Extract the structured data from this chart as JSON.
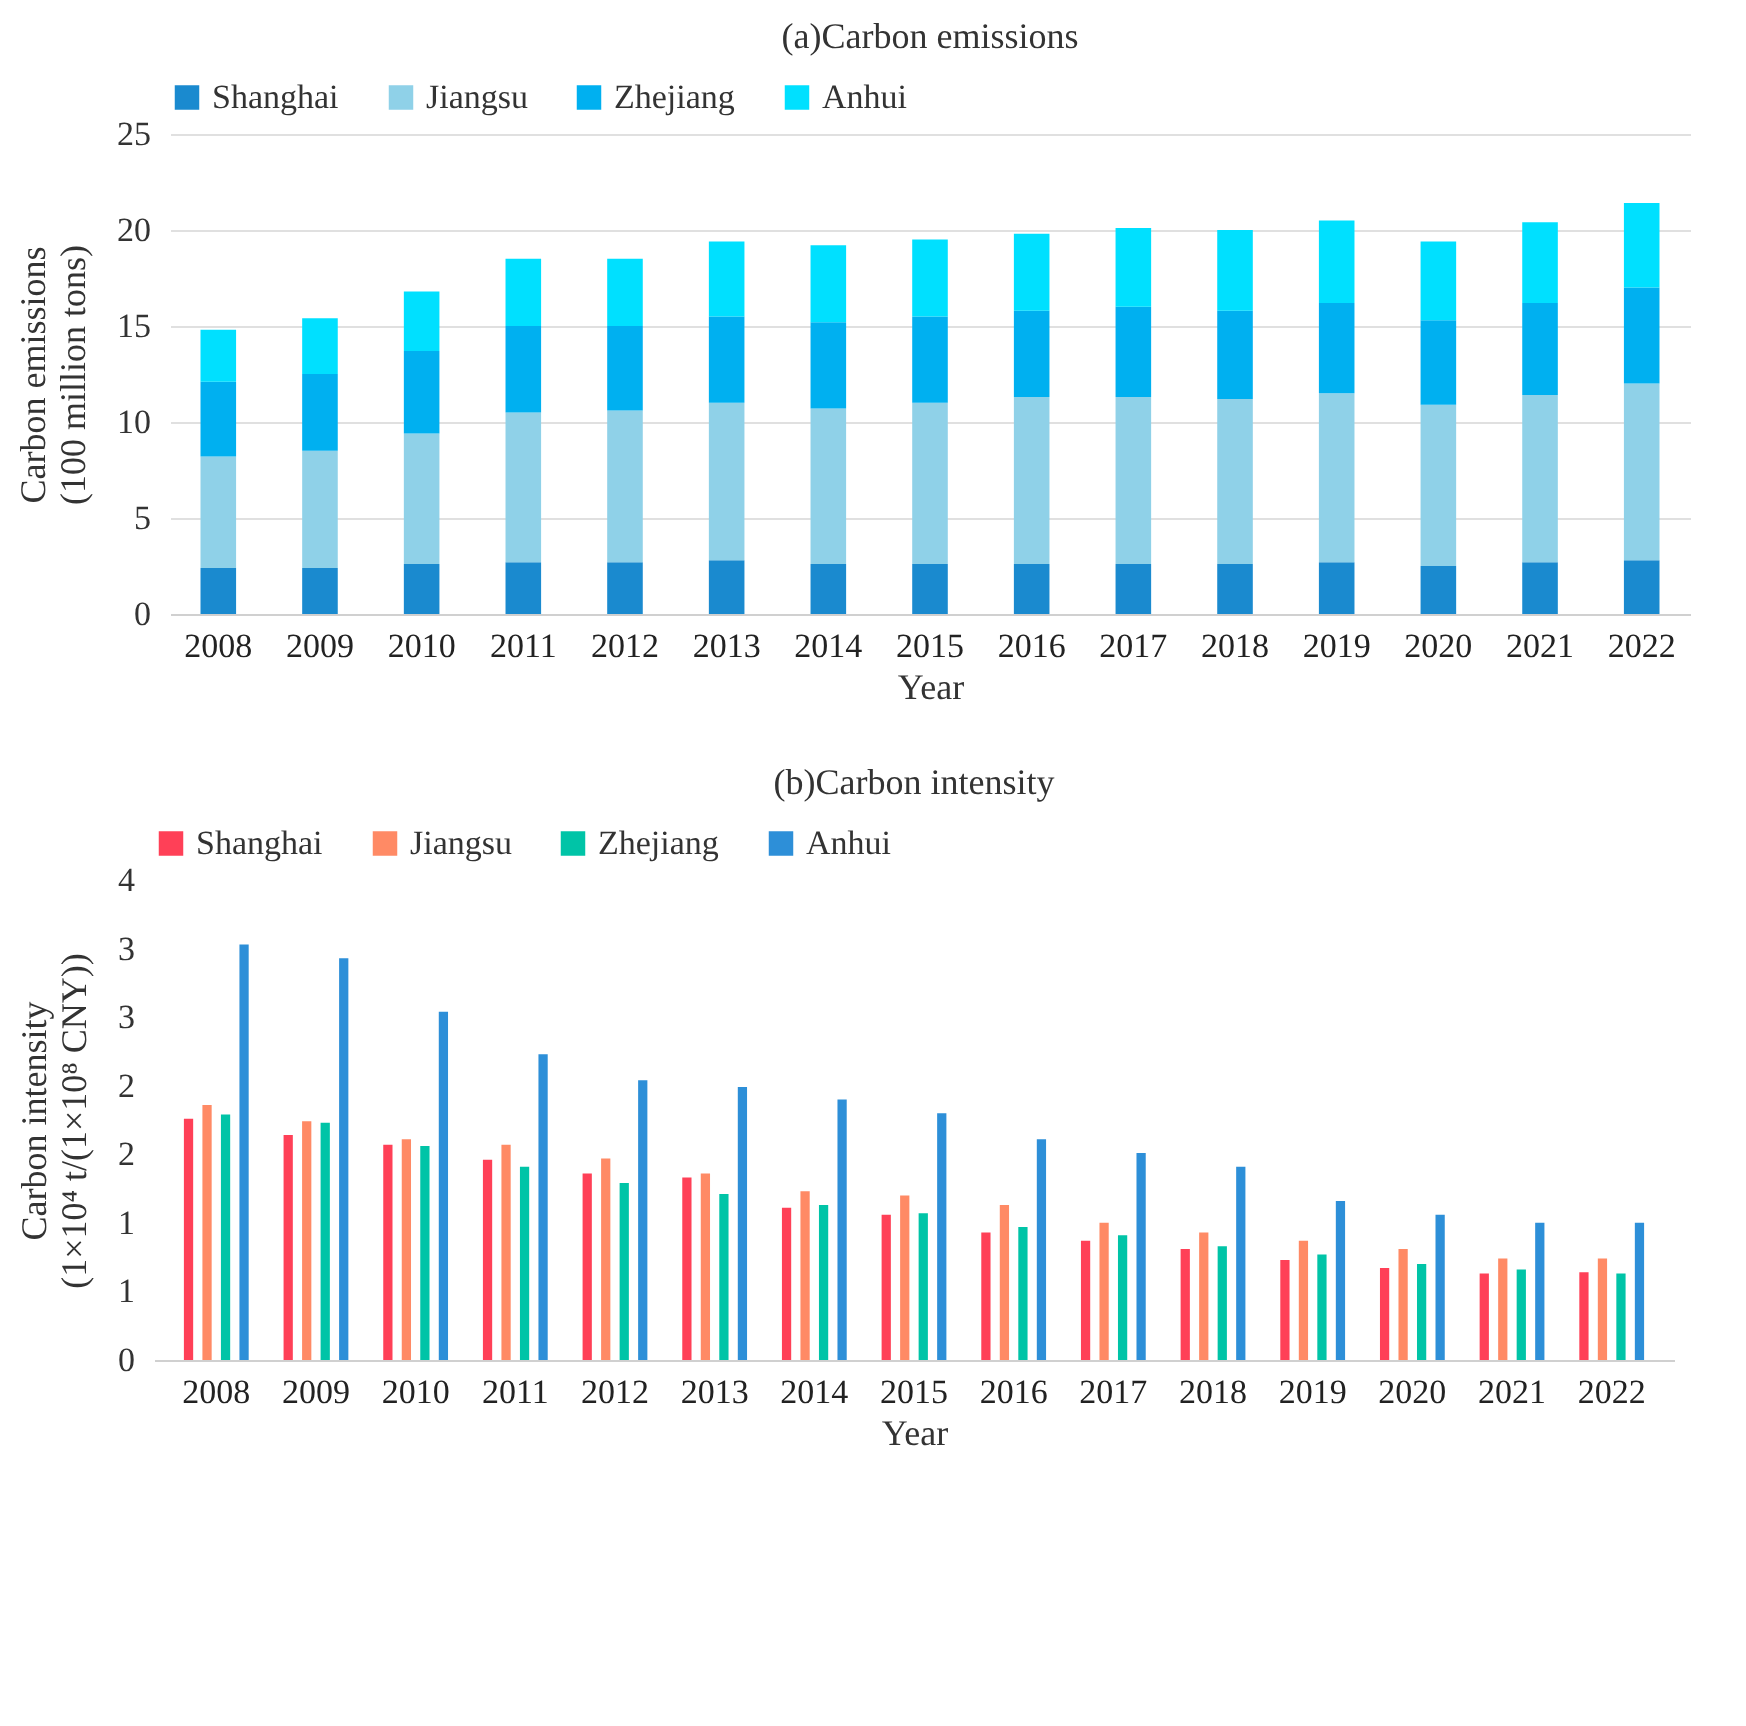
{
  "chart_data": [
    {
      "type": "bar",
      "title": "(a)Carbon emissions",
      "xlabel": "Year",
      "ylabel": "Carbon emissions\n(100 million tons)",
      "stacked": true,
      "grid": "y",
      "legend": "top",
      "categories": [
        "2008",
        "2009",
        "2010",
        "2011",
        "2012",
        "2013",
        "2014",
        "2015",
        "2016",
        "2017",
        "2018",
        "2019",
        "2020",
        "2021",
        "2022"
      ],
      "ylim": [
        0,
        25
      ],
      "yticks": [
        0,
        5,
        10,
        15,
        20,
        25
      ],
      "series": [
        {
          "name": "Shanghai",
          "color": "#1a8acf",
          "values": [
            2.4,
            2.4,
            2.6,
            2.7,
            2.7,
            2.8,
            2.6,
            2.6,
            2.6,
            2.6,
            2.6,
            2.7,
            2.5,
            2.7,
            2.8
          ]
        },
        {
          "name": "Jiangsu",
          "color": "#8fd1e8",
          "values": [
            5.8,
            6.1,
            6.8,
            7.8,
            7.9,
            8.2,
            8.1,
            8.4,
            8.7,
            8.7,
            8.6,
            8.8,
            8.4,
            8.7,
            9.2
          ]
        },
        {
          "name": "Zhejiang",
          "color": "#00b0f0",
          "values": [
            3.9,
            4.0,
            4.3,
            4.5,
            4.4,
            4.5,
            4.5,
            4.5,
            4.5,
            4.7,
            4.6,
            4.7,
            4.4,
            4.8,
            5.0
          ]
        },
        {
          "name": "Anhui",
          "color": "#00e0ff",
          "values": [
            2.7,
            2.9,
            3.1,
            3.5,
            3.5,
            3.9,
            4.0,
            4.0,
            4.0,
            4.1,
            4.2,
            4.3,
            4.1,
            4.2,
            4.4
          ]
        }
      ]
    },
    {
      "type": "bar",
      "title": "(b)Carbon intensity",
      "xlabel": "Year",
      "ylabel": "Carbon intensity\n(1×10⁴ t/(1×10⁸ CNY))",
      "legend": "top",
      "categories": [
        "2008",
        "2009",
        "2010",
        "2011",
        "2012",
        "2013",
        "2014",
        "2015",
        "2016",
        "2017",
        "2018",
        "2019",
        "2020",
        "2021",
        "2022"
      ],
      "ylim": [
        0,
        3.5
      ],
      "yticks": [
        0,
        {
          "value": 0.5,
          "label": "1"
        },
        1,
        {
          "value": 1.5,
          "label": "2"
        },
        2,
        {
          "value": 2.5,
          "label": "3"
        },
        3,
        {
          "value": 3.5,
          "label": "4"
        }
      ],
      "series": [
        {
          "name": "Shanghai",
          "color": "#ff4057",
          "values": [
            1.76,
            1.64,
            1.57,
            1.46,
            1.36,
            1.33,
            1.11,
            1.06,
            0.93,
            0.87,
            0.81,
            0.73,
            0.67,
            0.63,
            0.64
          ]
        },
        {
          "name": "Jiangsu",
          "color": "#ff8a65",
          "values": [
            1.86,
            1.74,
            1.61,
            1.57,
            1.47,
            1.36,
            1.23,
            1.2,
            1.13,
            1.0,
            0.93,
            0.87,
            0.81,
            0.74,
            0.74
          ]
        },
        {
          "name": "Zhejiang",
          "color": "#00c4a7",
          "values": [
            1.79,
            1.73,
            1.56,
            1.41,
            1.29,
            1.21,
            1.13,
            1.07,
            0.97,
            0.91,
            0.83,
            0.77,
            0.7,
            0.66,
            0.63
          ]
        },
        {
          "name": "Anhui",
          "color": "#2d8fd8",
          "values": [
            3.03,
            2.93,
            2.54,
            2.23,
            2.04,
            1.99,
            1.9,
            1.8,
            1.61,
            1.51,
            1.41,
            1.16,
            1.06,
            1.0,
            1.0
          ]
        }
      ]
    }
  ]
}
